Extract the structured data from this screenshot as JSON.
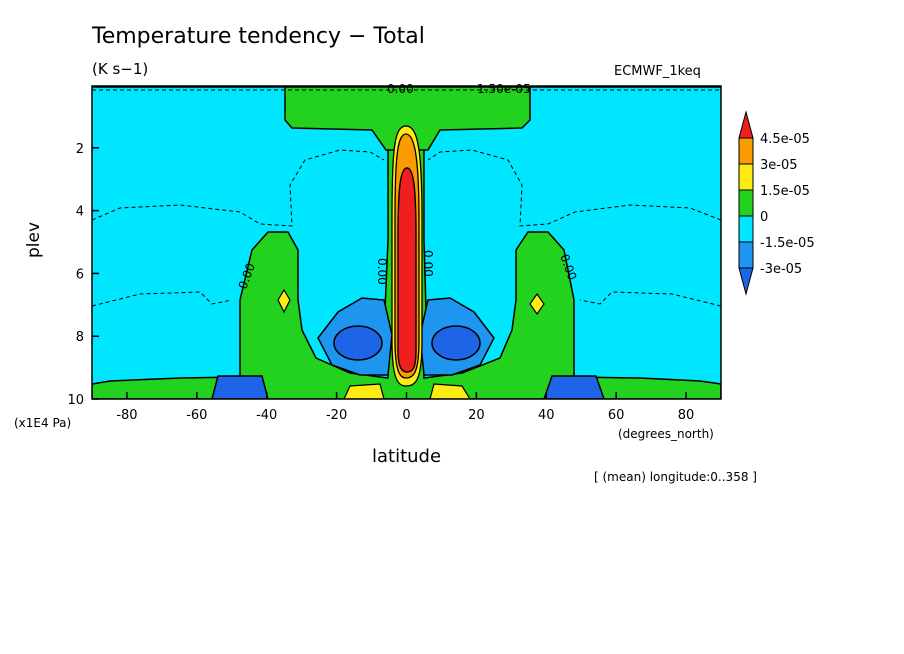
{
  "figure": {
    "title": "Temperature tendency − Total",
    "units": "(K s−1)",
    "dataset": "ECMWF_1keq",
    "y_scale_note": "(x1E4 Pa)",
    "x_units": "(degrees_north)",
    "footnote": "[ (mean) longitude:0..358 ]"
  },
  "chart_data": {
    "type": "heatmap",
    "subtype": "filled contour (latitude-pressure cross section)",
    "title": "Temperature tendency − Total",
    "xlabel": "latitude",
    "ylabel": "plev",
    "x_ticks": [
      -80,
      -60,
      -40,
      -20,
      0,
      20,
      40,
      60,
      80
    ],
    "xlim": [
      -90,
      90
    ],
    "y_ticks": [
      2,
      4,
      6,
      8,
      10
    ],
    "ylim": [
      10,
      0.03
    ],
    "y_inverted": true,
    "grid": false,
    "colorbar": {
      "placement": "right",
      "levels": [
        "4.5e-05",
        "3e-05",
        "1.5e-05",
        "0",
        "-1.5e-05",
        "-3e-05"
      ],
      "bins": [
        {
          "range": "< -3e-05",
          "color": "#1e64e6"
        },
        {
          "range": "-3e-05 to -1.5e-05",
          "color": "#1e96f0"
        },
        {
          "range": "-1.5e-05 to 0",
          "color": "#00e6ff"
        },
        {
          "range": "0 to 1.5e-05",
          "color": "#22d21e"
        },
        {
          "range": "1.5e-05 to 3e-05",
          "color": "#ffeb14"
        },
        {
          "range": "3e-05 to 4.5e-05",
          "color": "#fa9b00"
        },
        {
          "range": "> 4.5e-05",
          "color": "#f01e1e"
        }
      ]
    },
    "contour_labels": [
      "0.00",
      "0.00",
      "0.00",
      "0.00",
      "0.00",
      "1.50e-05",
      "0.00"
    ],
    "features": [
      {
        "name": "equatorial heating maximum",
        "lat": 0,
        "plev_range": [
          2.8,
          9.1
        ],
        "value_bin": "> 4.5e-05"
      },
      {
        "name": "subtropical cooling minimum (south)",
        "lat": -15,
        "plev_range": [
          7.7,
          9.0
        ],
        "value_bin": "< -3e-05"
      },
      {
        "name": "subtropical cooling minimum (north)",
        "lat": 15,
        "plev_range": [
          7.7,
          9.0
        ],
        "value_bin": "< -3e-05"
      },
      {
        "name": "midlatitude warming (south)",
        "lat": -40,
        "plev_range": [
          5.6,
          9.3
        ],
        "value_bin": "0 to 1.5e-05"
      },
      {
        "name": "midlatitude warming (north)",
        "lat": 40,
        "plev_range": [
          5.6,
          9.3
        ],
        "value_bin": "0 to 1.5e-05"
      },
      {
        "name": "upper-level warming band",
        "lat_range": [
          -35,
          35
        ],
        "plev_range": [
          0.03,
          1.3
        ],
        "value_bin": "0 to 1.5e-05"
      },
      {
        "name": "surface cooling block (south)",
        "lat_range": [
          -55,
          -40
        ],
        "plev_range": [
          9.2,
          10
        ],
        "value_bin": "< -3e-05"
      },
      {
        "name": "surface cooling block (north)",
        "lat_range": [
          40,
          56
        ],
        "plev_range": [
          9.2,
          10
        ],
        "value_bin": "< -3e-05"
      }
    ]
  }
}
